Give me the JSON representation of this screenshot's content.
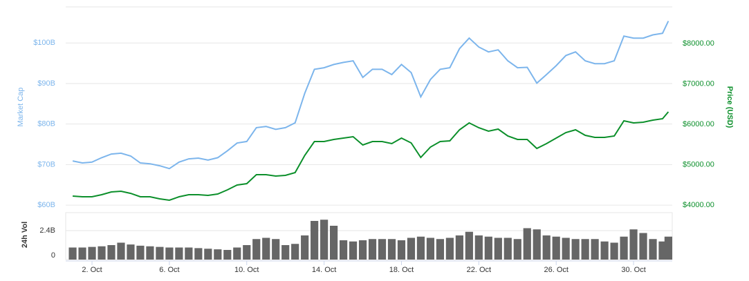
{
  "chart_data": [
    {
      "type": "line",
      "ylabel": "Market Cap",
      "y2label": "Price (USD)",
      "x": [
        1,
        1.5,
        2,
        2.5,
        3,
        3.5,
        4,
        4.5,
        5,
        5.5,
        6,
        6.5,
        7,
        7.5,
        8,
        8.5,
        9,
        9.5,
        10,
        10.5,
        11,
        11.5,
        12,
        12.5,
        13,
        13.5,
        14,
        14.5,
        15,
        15.5,
        16,
        16.5,
        17,
        17.5,
        18,
        18.5,
        19,
        19.5,
        20,
        20.5,
        21,
        21.5,
        22,
        22.5,
        23,
        23.5,
        24,
        24.5,
        25,
        25.5,
        26,
        26.5,
        27,
        27.5,
        28,
        28.5,
        29,
        29.5,
        30,
        30.5,
        31,
        31.5,
        31.8
      ],
      "xlim": [
        0.64,
        32.0
      ],
      "series": [
        {
          "name": "Market Cap",
          "color": "#7cb5ec",
          "values": [
            70.9,
            70.4,
            70.6,
            71.7,
            72.6,
            72.8,
            72.1,
            70.4,
            70.2,
            69.7,
            69.0,
            70.6,
            71.4,
            71.6,
            71.1,
            71.7,
            73.4,
            75.3,
            75.7,
            79.1,
            79.4,
            78.7,
            79.1,
            80.3,
            87.6,
            93.5,
            93.9,
            94.7,
            95.2,
            95.6,
            91.5,
            93.5,
            93.5,
            92.2,
            94.7,
            92.7,
            86.7,
            91.0,
            93.5,
            93.9,
            98.6,
            101.2,
            99.0,
            97.8,
            98.3,
            95.6,
            93.9,
            94.0,
            90.1,
            92.2,
            94.4,
            96.9,
            97.8,
            95.6,
            94.9,
            94.9,
            95.6,
            101.7,
            101.2,
            101.2,
            102.0,
            102.4,
            105.4
          ]
        },
        {
          "name": "Price (USD)",
          "color": "#0b8f2a",
          "axis": "y2",
          "values": [
            4222,
            4205,
            4205,
            4256,
            4325,
            4342,
            4290,
            4205,
            4205,
            4154,
            4120,
            4205,
            4256,
            4256,
            4239,
            4273,
            4376,
            4496,
            4530,
            4752,
            4752,
            4718,
            4735,
            4803,
            5231,
            5573,
            5573,
            5624,
            5658,
            5692,
            5487,
            5573,
            5573,
            5521,
            5658,
            5538,
            5179,
            5436,
            5573,
            5590,
            5863,
            6034,
            5915,
            5829,
            5880,
            5709,
            5624,
            5624,
            5402,
            5521,
            5658,
            5795,
            5863,
            5726,
            5675,
            5675,
            5709,
            6085,
            6034,
            6051,
            6103,
            6137,
            6308
          ]
        }
      ],
      "ylim": [
        59.5,
        108.9
      ],
      "yticks": [
        {
          "value": 60,
          "label": "$60B"
        },
        {
          "value": 70,
          "label": "$70B"
        },
        {
          "value": 80,
          "label": "$80B"
        },
        {
          "value": 90,
          "label": "$90B"
        },
        {
          "value": 100,
          "label": "$100B"
        }
      ],
      "y2lim": [
        3949,
        8906
      ],
      "y2ticks": [
        {
          "value": 4000,
          "label": "$4000.00"
        },
        {
          "value": 5000,
          "label": "$5000.00"
        },
        {
          "value": 6000,
          "label": "$6000.00"
        },
        {
          "value": 7000,
          "label": "$7000.00"
        },
        {
          "value": 8000,
          "label": "$8000.00"
        }
      ],
      "grid": true
    },
    {
      "type": "bar",
      "ylabel": "24h Vol",
      "color": "#666666",
      "x": [
        1,
        1.5,
        2,
        2.5,
        3,
        3.5,
        4,
        4.5,
        5,
        5.5,
        6,
        6.5,
        7,
        7.5,
        8,
        8.5,
        9,
        9.5,
        10,
        10.5,
        11,
        11.5,
        12,
        12.5,
        13,
        13.5,
        14,
        14.5,
        15,
        15.5,
        16,
        16.5,
        17,
        17.5,
        18,
        18.5,
        19,
        19.5,
        20,
        20.5,
        21,
        21.5,
        22,
        22.5,
        23,
        23.5,
        24,
        24.5,
        25,
        25.5,
        26,
        26.5,
        27,
        27.5,
        28,
        28.5,
        29,
        29.5,
        30,
        30.5,
        31,
        31.5,
        31.8
      ],
      "values": [
        1.0,
        1.0,
        1.05,
        1.1,
        1.2,
        1.4,
        1.25,
        1.15,
        1.1,
        1.05,
        1.0,
        1.0,
        1.0,
        0.95,
        0.9,
        0.85,
        0.8,
        1.0,
        1.2,
        1.7,
        1.8,
        1.7,
        1.2,
        1.3,
        2.0,
        3.2,
        3.3,
        2.8,
        1.6,
        1.5,
        1.6,
        1.7,
        1.7,
        1.7,
        1.6,
        1.8,
        1.9,
        1.8,
        1.7,
        1.8,
        2.0,
        2.3,
        2.0,
        1.9,
        1.8,
        1.8,
        1.7,
        2.6,
        2.5,
        2.0,
        1.9,
        1.8,
        1.7,
        1.7,
        1.7,
        1.5,
        1.4,
        1.9,
        2.5,
        2.2,
        1.7,
        1.5,
        1.9
      ],
      "xlim": [
        0.64,
        32.0
      ],
      "xticks": [
        {
          "value": 2,
          "label": "2. Oct"
        },
        {
          "value": 6,
          "label": "6. Oct"
        },
        {
          "value": 10,
          "label": "10. Oct"
        },
        {
          "value": 14,
          "label": "14. Oct"
        },
        {
          "value": 18,
          "label": "18. Oct"
        },
        {
          "value": 22,
          "label": "22. Oct"
        },
        {
          "value": 26,
          "label": "26. Oct"
        },
        {
          "value": 30,
          "label": "30. Oct"
        }
      ],
      "ylim": [
        0,
        3.77
      ],
      "yticks": [
        0,
        {
          "value": 2.4,
          "label": "2.4B"
        }
      ]
    }
  ]
}
